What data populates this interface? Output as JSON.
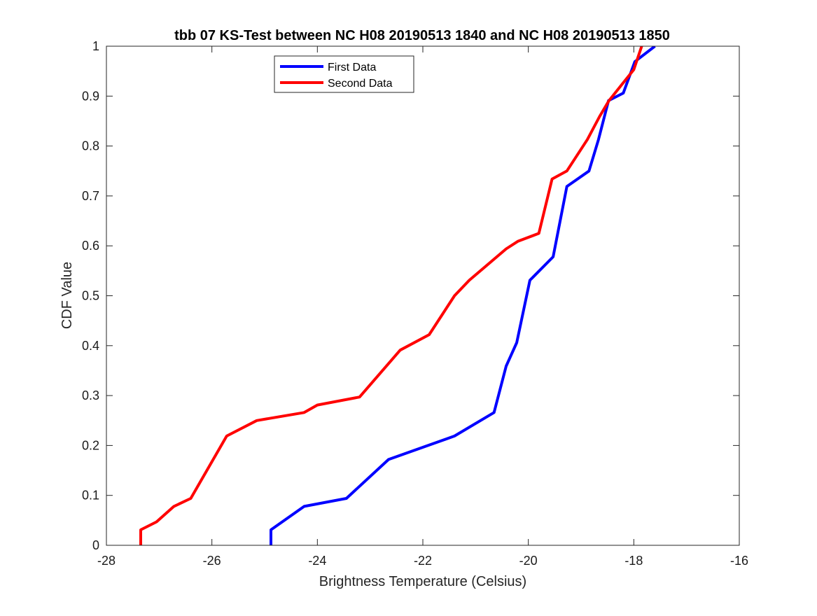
{
  "chart_data": {
    "type": "line",
    "title": "tbb 07 KS-Test between NC H08 20190513 1840 and NC H08 20190513 1850",
    "xlabel": "Brightness Temperature (Celsius)",
    "ylabel": "CDF Value",
    "xlim": [
      -28,
      -16
    ],
    "ylim": [
      0,
      1
    ],
    "xticks": [
      -28,
      -26,
      -24,
      -22,
      -20,
      -18,
      -16
    ],
    "yticks": [
      0,
      0.1,
      0.2,
      0.3,
      0.4,
      0.5,
      0.6,
      0.7,
      0.8,
      0.9,
      1
    ],
    "xtick_labels": [
      "-28",
      "-26",
      "-24",
      "-22",
      "-20",
      "-18",
      "-16"
    ],
    "ytick_labels": [
      "0",
      "0.1",
      "0.2",
      "0.3",
      "0.4",
      "0.5",
      "0.6",
      "0.7",
      "0.8",
      "0.9",
      "1"
    ],
    "grid": false,
    "legend_position": "top-center",
    "series": [
      {
        "name": "First Data",
        "color": "#0000ff",
        "x": [
          -24.88,
          -24.88,
          -24.25,
          -23.45,
          -22.65,
          -21.4,
          -20.65,
          -20.42,
          -20.22,
          -19.97,
          -19.53,
          -19.27,
          -18.85,
          -18.67,
          -18.48,
          -18.2,
          -17.98,
          -17.6
        ],
        "y": [
          0,
          0.031,
          0.078,
          0.094,
          0.172,
          0.219,
          0.266,
          0.359,
          0.406,
          0.531,
          0.578,
          0.719,
          0.75,
          0.813,
          0.891,
          0.906,
          0.969,
          1.0
        ]
      },
      {
        "name": "Second Data",
        "color": "#ff0000",
        "x": [
          -27.35,
          -27.35,
          -27.05,
          -26.72,
          -26.4,
          -25.72,
          -25.15,
          -24.25,
          -24.0,
          -23.2,
          -22.43,
          -21.88,
          -21.4,
          -21.12,
          -20.42,
          -20.2,
          -19.8,
          -19.55,
          -19.27,
          -18.88,
          -18.65,
          -18.47,
          -18.0,
          -17.85
        ],
        "y": [
          0,
          0.031,
          0.047,
          0.078,
          0.094,
          0.219,
          0.25,
          0.266,
          0.281,
          0.297,
          0.391,
          0.422,
          0.5,
          0.531,
          0.594,
          0.609,
          0.625,
          0.734,
          0.75,
          0.813,
          0.859,
          0.891,
          0.953,
          1.0
        ]
      }
    ]
  }
}
